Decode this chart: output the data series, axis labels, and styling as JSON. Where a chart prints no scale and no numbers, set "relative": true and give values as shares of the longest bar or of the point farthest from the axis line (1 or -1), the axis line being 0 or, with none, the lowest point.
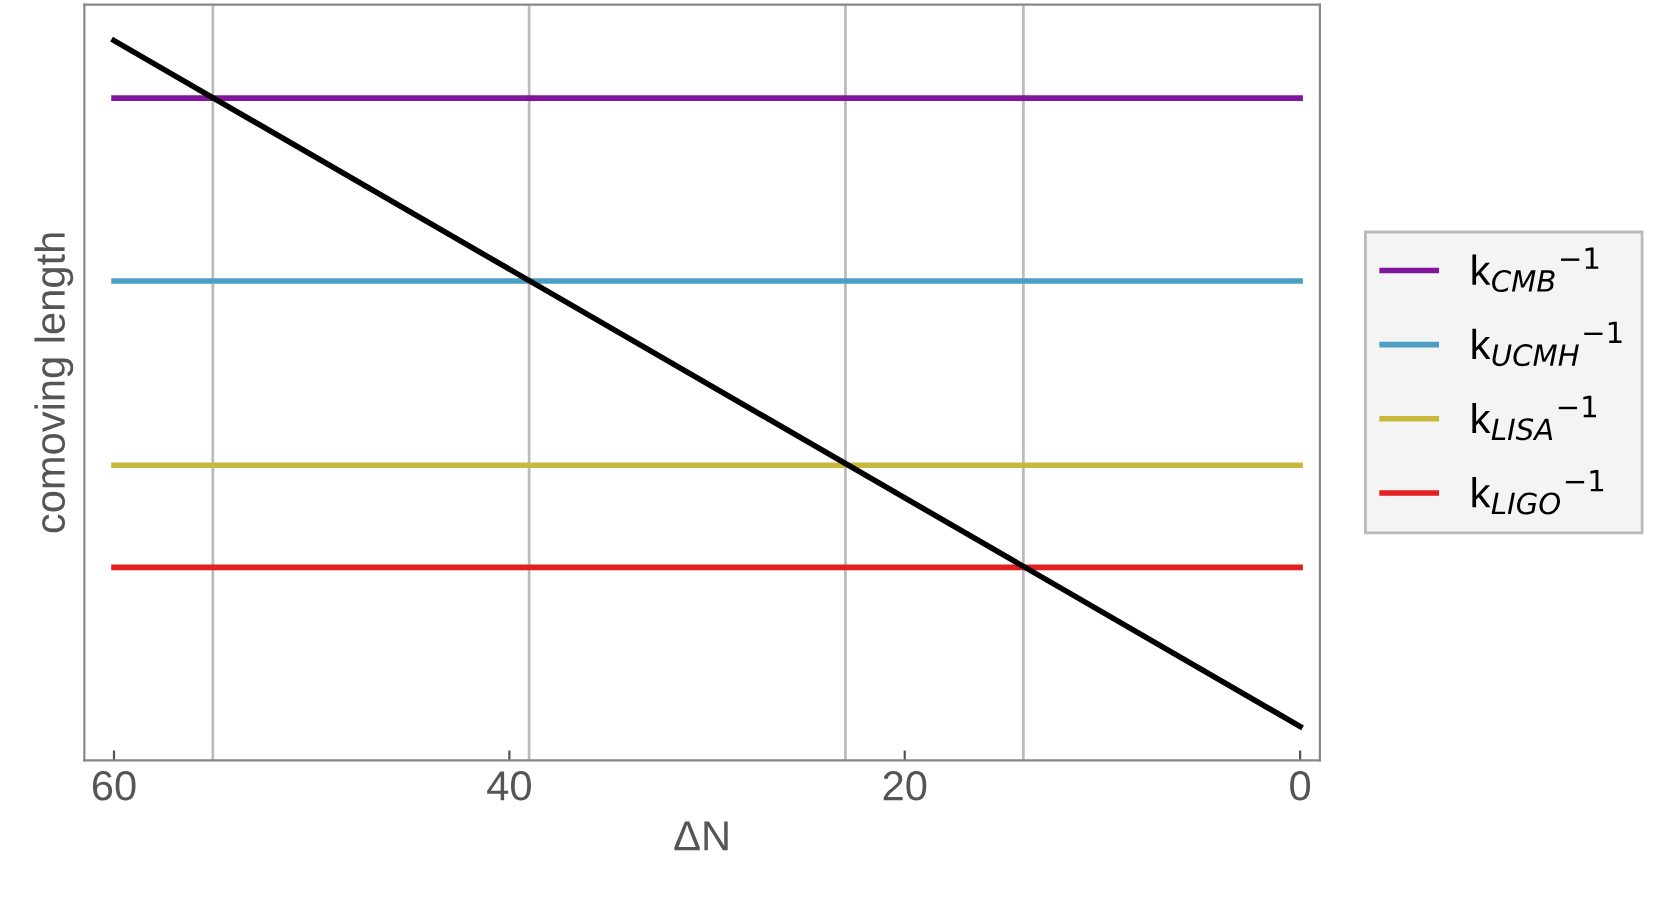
{
  "chart_data": {
    "type": "line",
    "relative": true,
    "xlabel": "ΔN",
    "ylabel": "comoving length",
    "xlim": [
      61.5,
      -1
    ],
    "xticks": [
      60,
      40,
      20,
      0
    ],
    "grid": false,
    "legend": "right",
    "marker": "none",
    "line_style": "solid",
    "x": [
      60,
      0
    ],
    "series": [
      {
        "name": "k$_{CMB}$$^{−1}$",
        "color": "#80179a",
        "values": [
          0.92,
          0.92
        ]
      },
      {
        "name": "k$_{UCMH}$$^{−1}$",
        "color": "#4a9fc3",
        "values": [
          0.666,
          0.666
        ]
      },
      {
        "name": "k$_{LISA}$$^{−1}$",
        "color": "#c9b83a",
        "values": [
          0.41,
          0.41
        ]
      },
      {
        "name": "k$_{LIGO}$$^{−1}$",
        "color": "#e41f1f",
        "values": [
          0.268,
          0.268
        ]
      },
      {
        "color": "#000000",
        "values": [
          1,
          0.047
        ]
      }
    ],
    "ref_lines": [
      {
        "axis": "x",
        "value": 55,
        "color": "#bbbbbb"
      },
      {
        "axis": "x",
        "value": 39,
        "color": "#bbbbbb"
      },
      {
        "axis": "x",
        "value": 23,
        "color": "#bbbbbb"
      },
      {
        "axis": "x",
        "value": 14,
        "color": "#bbbbbb"
      }
    ]
  }
}
